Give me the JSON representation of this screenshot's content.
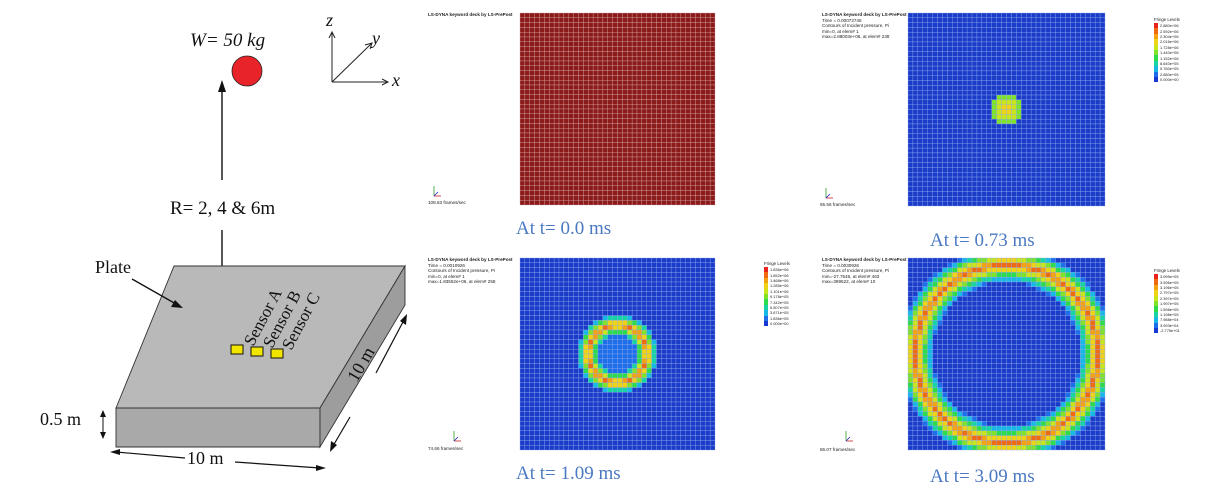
{
  "schematic": {
    "weight_label": "W= 50 kg",
    "distance_label": "R= 2, 4 & 6m",
    "plate_label": "Plate",
    "sensors": [
      "Sensor A",
      "Sensor B",
      "Sensor C"
    ],
    "thickness_label": "0.5 m",
    "width_label": "10 m",
    "depth_label": "10 m",
    "axes": {
      "x": "x",
      "y": "y",
      "z": "z"
    },
    "charge_color": "#e8242a",
    "plate_color": "#b9b9b9",
    "sensor_color": "#f2e500"
  },
  "panels": [
    {
      "caption": "At t= 0.0 ms",
      "title": "LS-DYNA keyword deck by LS-PrePost",
      "info_lines": [],
      "frame_rate": "108.63 frames/sec",
      "legend": null,
      "state": "uniform",
      "field_color": "#8b1a1a"
    },
    {
      "caption": "At t= 0.73 ms",
      "title": "LS-DYNA keyword deck by LS-PrePost",
      "info_lines": [
        "Time = 0.00072746",
        "Contours of Incident pressure, Pi",
        "min=0, at elem# 1",
        "max=2.88003e+06, at elem# 238"
      ],
      "frame_rate": "65.56 frames/sec",
      "legend": {
        "title": "Fringe Levels",
        "values": [
          "2.880e+06",
          "2.592e+06",
          "2.304e+06",
          "2.016e+06",
          "1.728e+06",
          "1.440e+06",
          "1.152e+06",
          "8.640e+05",
          "5.760e+05",
          "2.880e+05",
          "0.000e+00"
        ]
      },
      "state": "small-blob",
      "field_color": "#1a3cc8"
    },
    {
      "caption": "At t= 1.09 ms",
      "title": "LS-DYNA keyword deck by LS-PrePost",
      "info_lines": [
        "Time = 0.0010926",
        "Contours of Incident pressure, Pi",
        "min=0, at elem# 1",
        "max=1.83552e+06, at elem# 258"
      ],
      "frame_rate": "74.66 frames/sec",
      "legend": {
        "title": "Fringe Levels",
        "values": [
          "1.836e+06",
          "1.652e+06",
          "1.468e+06",
          "1.285e+06",
          "1.101e+06",
          "9.178e+05",
          "7.342e+05",
          "5.507e+05",
          "3.671e+05",
          "1.836e+05",
          "0.000e+00"
        ]
      },
      "state": "small-ring",
      "field_color": "#1a3cc8"
    },
    {
      "caption": "At t= 3.09 ms",
      "title": "LS-DYNA keyword deck by LS-PrePost",
      "info_lines": [
        "Time = 0.0030926",
        "Contours of Incident pressure, Pi",
        "min=-27.7546, at elem# 463",
        "max=399522, at elem# 10"
      ],
      "frame_rate": "86.07 frames/sec",
      "legend": {
        "title": "Fringe Levels",
        "values": [
          "3.995e+05",
          "3.596e+05",
          "3.196e+05",
          "2.797e+05",
          "2.397e+05",
          "1.997e+05",
          "1.598e+05",
          "1.198e+05",
          "7.988e+04",
          "3.993e+04",
          "-2.775e+01"
        ]
      },
      "state": "large-ring",
      "field_color": "#1a3cc8"
    }
  ],
  "fringe_colors": [
    "#e8231b",
    "#f06a12",
    "#f4a20f",
    "#eed414",
    "#c8e619",
    "#7fe32a",
    "#2ddc4a",
    "#17d5a2",
    "#17b8e4",
    "#1c6fe8",
    "#1838d2"
  ]
}
